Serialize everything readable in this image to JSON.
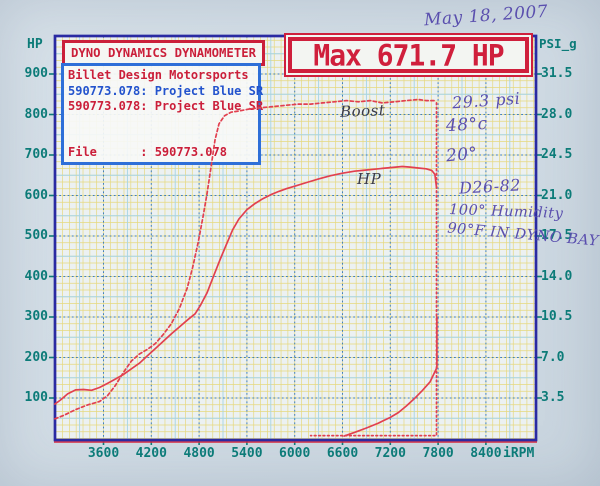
{
  "header": {
    "dyno_title": "DYNO DYNAMICS DYNAMOMETER",
    "max_label": "Max 671.7 HP",
    "date_handwritten": "May 18, 2007"
  },
  "info_box": {
    "line1": "Billet Design Motorsports",
    "line2": "590773.078: Project Blue SR",
    "line3": "590773.078: Project Blue SR",
    "file_line": "File      : 590773.078"
  },
  "axes": {
    "left_label": "HP",
    "right_label": "PSI_g",
    "x_unit_label": "iRPM",
    "left_ticks": [
      "900",
      "800",
      "700",
      "600",
      "500",
      "400",
      "300",
      "200",
      "100"
    ],
    "right_ticks": [
      "31.5",
      "28.0",
      "24.5",
      "21.0",
      "17.5",
      "14.0",
      "10.5",
      "7.0",
      "3.5"
    ],
    "x_ticks": [
      "3600",
      "4200",
      "4800",
      "5400",
      "6000",
      "6600",
      "7200",
      "7800",
      "8400"
    ]
  },
  "annotations": {
    "curve_labels": {
      "boost": "Boost",
      "hp": "HP"
    },
    "notes": [
      "29.3 psi",
      "48°c",
      "20°",
      "D26-82",
      "100° Humidity",
      "90°F IN DYNO BAY"
    ]
  },
  "colors": {
    "curve_red": "#e2404f",
    "machine_red": "#cb1f3a",
    "machine_blue": "#2353cd",
    "axis_teal": "#0c7b78",
    "handwriting_purple": "#5a4fae",
    "plot_border_navy": "#2a2aa2",
    "grid_yellow": "#e6d87e",
    "grid_cyan": "#a6d4e4",
    "grid_major_blue": "#3e7ec2"
  },
  "chart_data": {
    "type": "line",
    "title": "Max 671.7 HP",
    "xlabel": "iRPM",
    "ylabel_left": "HP",
    "ylabel_right": "PSI_g",
    "x_range": [
      3000,
      9030
    ],
    "y_left_range": [
      0,
      990
    ],
    "y_right_range": [
      0,
      34.6
    ],
    "x_tick_values": [
      3600,
      4200,
      4800,
      5400,
      6000,
      6600,
      7200,
      7800,
      8400
    ],
    "y_left_tick_values": [
      900,
      800,
      700,
      600,
      500,
      400,
      300,
      200,
      100
    ],
    "y_right_tick_values": [
      31.5,
      28.0,
      24.5,
      21.0,
      17.5,
      14.0,
      10.5,
      7.0,
      3.5
    ],
    "grid": true,
    "legend_position": "on-curve-handwritten",
    "max_hp": 671.7,
    "max_boost_psi": 29.3,
    "series": [
      {
        "name": "HP",
        "axis": "left",
        "style": "solid",
        "points": [
          [
            2990,
            85
          ],
          [
            3060,
            95
          ],
          [
            3150,
            110
          ],
          [
            3250,
            120
          ],
          [
            3350,
            121
          ],
          [
            3450,
            119
          ],
          [
            3550,
            126
          ],
          [
            3650,
            136
          ],
          [
            3750,
            147
          ],
          [
            3850,
            158
          ],
          [
            3950,
            172
          ],
          [
            4050,
            186
          ],
          [
            4150,
            204
          ],
          [
            4250,
            222
          ],
          [
            4350,
            240
          ],
          [
            4450,
            258
          ],
          [
            4550,
            275
          ],
          [
            4650,
            292
          ],
          [
            4750,
            308
          ],
          [
            4820,
            330
          ],
          [
            4900,
            360
          ],
          [
            4980,
            400
          ],
          [
            5060,
            440
          ],
          [
            5140,
            478
          ],
          [
            5220,
            515
          ],
          [
            5300,
            542
          ],
          [
            5400,
            565
          ],
          [
            5500,
            580
          ],
          [
            5600,
            592
          ],
          [
            5700,
            602
          ],
          [
            5800,
            610
          ],
          [
            5900,
            617
          ],
          [
            6000,
            623
          ],
          [
            6150,
            632
          ],
          [
            6300,
            641
          ],
          [
            6450,
            649
          ],
          [
            6600,
            655
          ],
          [
            6750,
            660
          ],
          [
            6900,
            663
          ],
          [
            7050,
            666
          ],
          [
            7200,
            669
          ],
          [
            7350,
            671.7
          ],
          [
            7450,
            670
          ],
          [
            7550,
            668
          ],
          [
            7650,
            666
          ],
          [
            7720,
            662
          ],
          [
            7760,
            652
          ],
          [
            7780,
            620
          ]
        ]
      },
      {
        "name": "HP run-down",
        "axis": "left",
        "style": "solid",
        "points": [
          [
            7785,
            300
          ],
          [
            7785,
            175
          ],
          [
            7700,
            140
          ],
          [
            7600,
            118
          ],
          [
            7500,
            98
          ],
          [
            7400,
            80
          ],
          [
            7300,
            64
          ],
          [
            7200,
            52
          ],
          [
            7050,
            38
          ],
          [
            6900,
            26
          ],
          [
            6750,
            15
          ],
          [
            6620,
            6
          ]
        ]
      },
      {
        "name": "Boost",
        "axis": "right",
        "style": "dashed",
        "points": [
          [
            2990,
            1.7
          ],
          [
            3100,
            2.0
          ],
          [
            3250,
            2.5
          ],
          [
            3400,
            2.9
          ],
          [
            3550,
            3.2
          ],
          [
            3650,
            3.7
          ],
          [
            3750,
            4.6
          ],
          [
            3850,
            5.7
          ],
          [
            3950,
            6.7
          ],
          [
            4050,
            7.3
          ],
          [
            4150,
            7.7
          ],
          [
            4250,
            8.2
          ],
          [
            4350,
            9.0
          ],
          [
            4450,
            9.9
          ],
          [
            4550,
            11.2
          ],
          [
            4650,
            13.0
          ],
          [
            4720,
            14.8
          ],
          [
            4790,
            17.0
          ],
          [
            4850,
            19.2
          ],
          [
            4900,
            21.2
          ],
          [
            4950,
            23.5
          ],
          [
            5000,
            25.8
          ],
          [
            5050,
            27.2
          ],
          [
            5120,
            27.9
          ],
          [
            5200,
            28.2
          ],
          [
            5300,
            28.3
          ],
          [
            5450,
            28.5
          ],
          [
            5600,
            28.6
          ],
          [
            5750,
            28.7
          ],
          [
            5900,
            28.8
          ],
          [
            6050,
            28.9
          ],
          [
            6200,
            28.9
          ],
          [
            6350,
            29.0
          ],
          [
            6500,
            29.1
          ],
          [
            6650,
            29.2
          ],
          [
            6800,
            29.1
          ],
          [
            6950,
            29.2
          ],
          [
            7100,
            29.0
          ],
          [
            7250,
            29.1
          ],
          [
            7400,
            29.2
          ],
          [
            7550,
            29.3
          ],
          [
            7650,
            29.2
          ],
          [
            7770,
            29.2
          ]
        ]
      },
      {
        "name": "Boost cut-off",
        "axis": "right",
        "style": "dotted",
        "points": [
          [
            7780,
            29.0
          ],
          [
            7780,
            0.25
          ],
          [
            7300,
            0.25
          ],
          [
            6700,
            0.25
          ],
          [
            6200,
            0.25
          ]
        ]
      }
    ]
  }
}
